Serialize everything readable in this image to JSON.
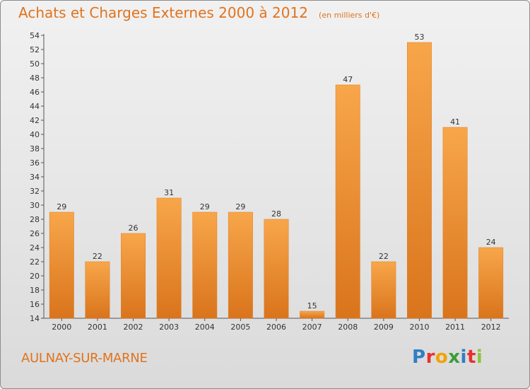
{
  "title": "Achats et Charges Externes 2000 à 2012",
  "unit_note": "(en milliers d'€)",
  "commune": "AULNAY-SUR-MARNE",
  "logo": {
    "letters": [
      "P",
      "r",
      "o",
      "x",
      "i",
      "t",
      "i"
    ],
    "colors": [
      "#2e7fc4",
      "#e8312f",
      "#f2a300",
      "#3c9d3a",
      "#2e7fc4",
      "#e8312f",
      "#8cc63f"
    ]
  },
  "colors": {
    "accent": "#e0731e",
    "bar_light": "#f8a64a",
    "bar_dark": "#d9741c"
  },
  "chart_data": {
    "type": "bar",
    "title": "Achats et Charges Externes 2000 à 2012",
    "categories": [
      "2000",
      "2001",
      "2002",
      "2003",
      "2004",
      "2005",
      "2006",
      "2007",
      "2008",
      "2009",
      "2010",
      "2011",
      "2012"
    ],
    "values": [
      29,
      22,
      26,
      31,
      29,
      29,
      28,
      15,
      47,
      22,
      53,
      41,
      24
    ],
    "xlabel": "",
    "ylabel": "",
    "ylim": [
      14,
      54
    ],
    "yticks": [
      14,
      16,
      18,
      20,
      22,
      24,
      26,
      28,
      30,
      32,
      34,
      36,
      38,
      40,
      42,
      44,
      46,
      48,
      50,
      52,
      54
    ],
    "grid": false,
    "legend": "none"
  }
}
